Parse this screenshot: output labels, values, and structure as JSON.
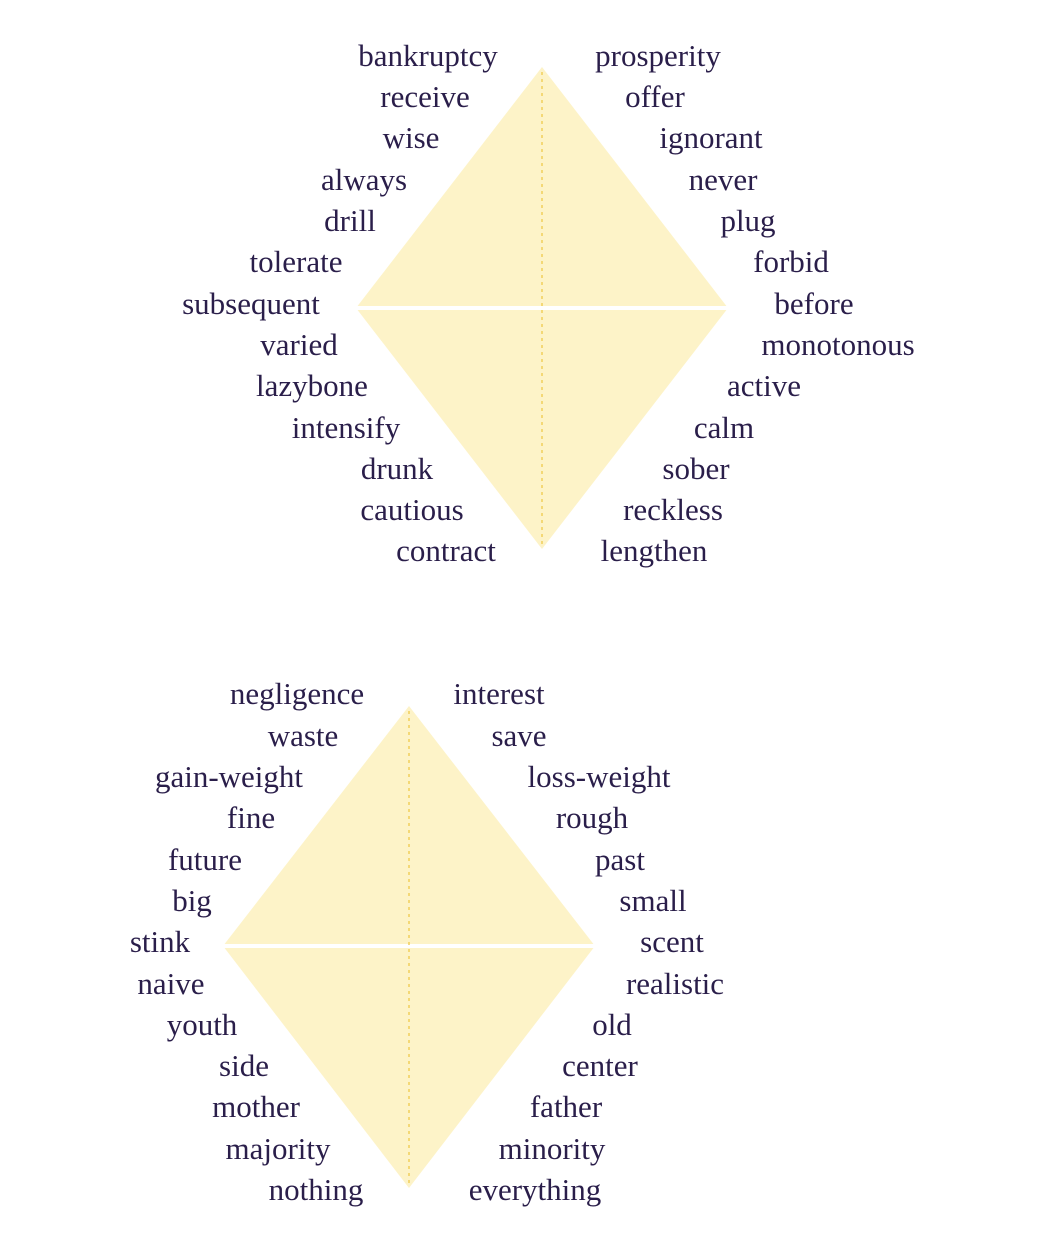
{
  "colors": {
    "diamond_fill": "#fdf3c8",
    "divider": "#ffffff",
    "axis_dash": "#f2cf5a",
    "text": "#2a1e4a"
  },
  "diamonds": [
    {
      "left_words": [
        "bankruptcy",
        "receive",
        "wise",
        "always",
        "drill",
        "tolerate",
        "subsequent",
        "varied",
        "lazybone",
        "intensify",
        "drunk",
        "cautious",
        "contract"
      ],
      "right_words": [
        "prosperity",
        "offer",
        "ignorant",
        "never",
        "plug",
        "forbid",
        "before",
        "monotonous",
        "active",
        "calm",
        "sober",
        "reckless",
        "lengthen"
      ]
    },
    {
      "left_words": [
        "negligence",
        "waste",
        "gain-weight",
        "fine",
        "future",
        "big",
        "stink",
        "naive",
        "youth",
        "side",
        "mother",
        "majority",
        "nothing"
      ],
      "right_words": [
        "interest",
        "save",
        "loss-weight",
        "rough",
        "past",
        "small",
        "scent",
        "realistic",
        "old",
        "center",
        "father",
        "minority",
        "everything"
      ]
    }
  ]
}
